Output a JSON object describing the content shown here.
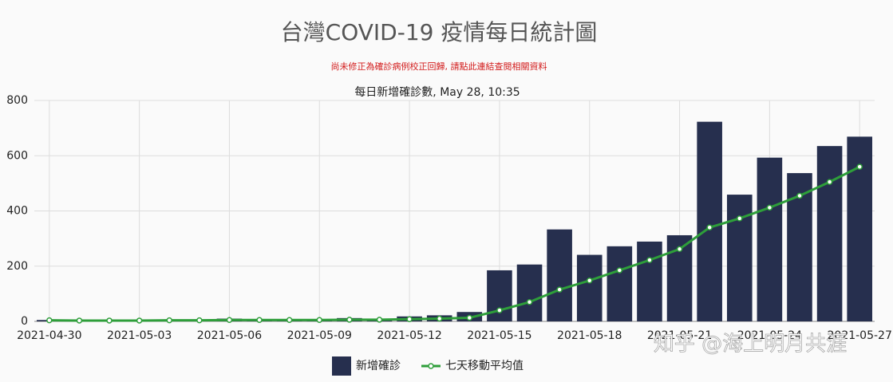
{
  "page_title": "台灣COVID-19 疫情每日統計圖",
  "notice": "尚未修正為確診病例校正回歸, 請點此連結查閱相關資料",
  "watermark": "知乎 @海上明月共涯",
  "chart_data": {
    "type": "bar",
    "title": "每日新增確診數, May 28, 10:35",
    "categories": [
      "2021-04-30",
      null,
      null,
      "2021-05-03",
      null,
      null,
      "2021-05-06",
      null,
      null,
      "2021-05-09",
      null,
      null,
      "2021-05-12",
      null,
      null,
      "2021-05-15",
      null,
      null,
      "2021-05-18",
      null,
      null,
      "2021-05-21",
      null,
      null,
      "2021-05-24",
      null,
      null,
      "2021-05-27"
    ],
    "series": [
      {
        "name": "新增確診",
        "type": "bar",
        "color": "#262f4e",
        "values": [
          5,
          2,
          2,
          3,
          3,
          3,
          10,
          5,
          4,
          3,
          12,
          4,
          18,
          22,
          34,
          185,
          206,
          333,
          241,
          272,
          289,
          312,
          723,
          459,
          593,
          537,
          635,
          669
        ]
      },
      {
        "name": "七天移動平均值",
        "type": "line",
        "color": "#2e9e3a",
        "values": [
          4,
          3,
          3,
          3,
          4,
          4,
          5,
          5,
          5,
          5,
          6,
          6,
          8,
          10,
          13,
          40,
          70,
          115,
          148,
          185,
          222,
          262,
          340,
          373,
          412,
          455,
          505,
          560
        ]
      }
    ],
    "ylim": [
      0,
      800
    ],
    "yticks": [
      0,
      200,
      400,
      600,
      800
    ],
    "grid": true
  }
}
